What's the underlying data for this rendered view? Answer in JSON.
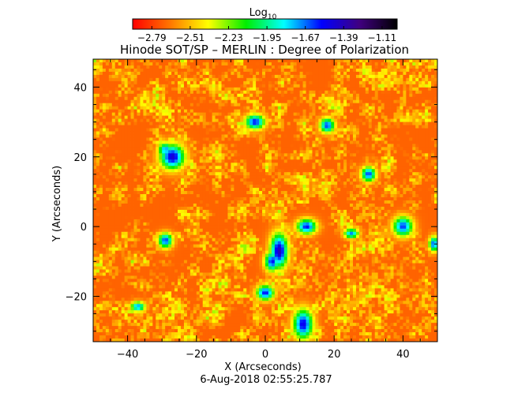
{
  "chart_data": {
    "type": "heatmap",
    "title": "Hinode SOT/SP – MERLIN : Degree of Polarization",
    "xlabel": "X (Arcseconds)",
    "ylabel": "Y (Arcseconds)",
    "xlim": [
      -50,
      50
    ],
    "ylim": [
      -33,
      48
    ],
    "x_ticks": [
      -40,
      -20,
      0,
      20,
      40
    ],
    "y_ticks": [
      -20,
      0,
      20,
      40
    ],
    "x_tick_labels": [
      "−40",
      "−20",
      "0",
      "20",
      "40"
    ],
    "y_tick_labels": [
      "−20",
      "0",
      "20",
      "40"
    ],
    "colorbar": {
      "title": "Log",
      "title_subscript": "10",
      "range": [
        -2.93,
        -1.0
      ],
      "ticks": [
        -2.79,
        -2.51,
        -2.23,
        -1.95,
        -1.67,
        -1.39,
        -1.11
      ],
      "tick_labels": [
        "−2.79",
        "−2.51",
        "−2.23",
        "−1.95",
        "−1.67",
        "−1.39",
        "−1.11"
      ],
      "colors": [
        "#ff0000",
        "#ff7700",
        "#ffff00",
        "#00ee00",
        "#00ffff",
        "#0000ff",
        "#400080",
        "#000000"
      ]
    },
    "background_level": -2.7,
    "features": [
      {
        "x": -27,
        "y": 20,
        "sx": 2.5,
        "sy": 2.5,
        "level": -1.45
      },
      {
        "x": -29,
        "y": 22,
        "sx": 1.5,
        "sy": 1.5,
        "level": -1.7
      },
      {
        "x": 4,
        "y": -7,
        "sx": 1.8,
        "sy": 3.5,
        "level": -1.4
      },
      {
        "x": 2,
        "y": -10,
        "sx": 1.5,
        "sy": 2.0,
        "level": -1.55
      },
      {
        "x": 0,
        "y": -19,
        "sx": 1.8,
        "sy": 1.5,
        "level": -1.55
      },
      {
        "x": 11,
        "y": -28,
        "sx": 2.0,
        "sy": 3.0,
        "level": -1.5
      },
      {
        "x": 12,
        "y": 0,
        "sx": 2.0,
        "sy": 1.5,
        "level": -1.55
      },
      {
        "x": -3,
        "y": 30,
        "sx": 2.0,
        "sy": 1.5,
        "level": -1.55
      },
      {
        "x": 40,
        "y": 0,
        "sx": 2.0,
        "sy": 2.0,
        "level": -1.6
      },
      {
        "x": 30,
        "y": 15,
        "sx": 1.5,
        "sy": 1.5,
        "level": -1.6
      },
      {
        "x": 18,
        "y": 29,
        "sx": 1.5,
        "sy": 1.5,
        "level": -1.6
      },
      {
        "x": -29,
        "y": -4,
        "sx": 1.5,
        "sy": 1.5,
        "level": -1.6
      },
      {
        "x": 49,
        "y": -5,
        "sx": 1.0,
        "sy": 1.5,
        "level": -1.6
      },
      {
        "x": 25,
        "y": -2,
        "sx": 1.5,
        "sy": 1.0,
        "level": -1.7
      },
      {
        "x": -37,
        "y": -23,
        "sx": 1.5,
        "sy": 1.0,
        "level": -1.7
      }
    ]
  },
  "timestamp": "6-Aug-2018 02:55:25.787"
}
